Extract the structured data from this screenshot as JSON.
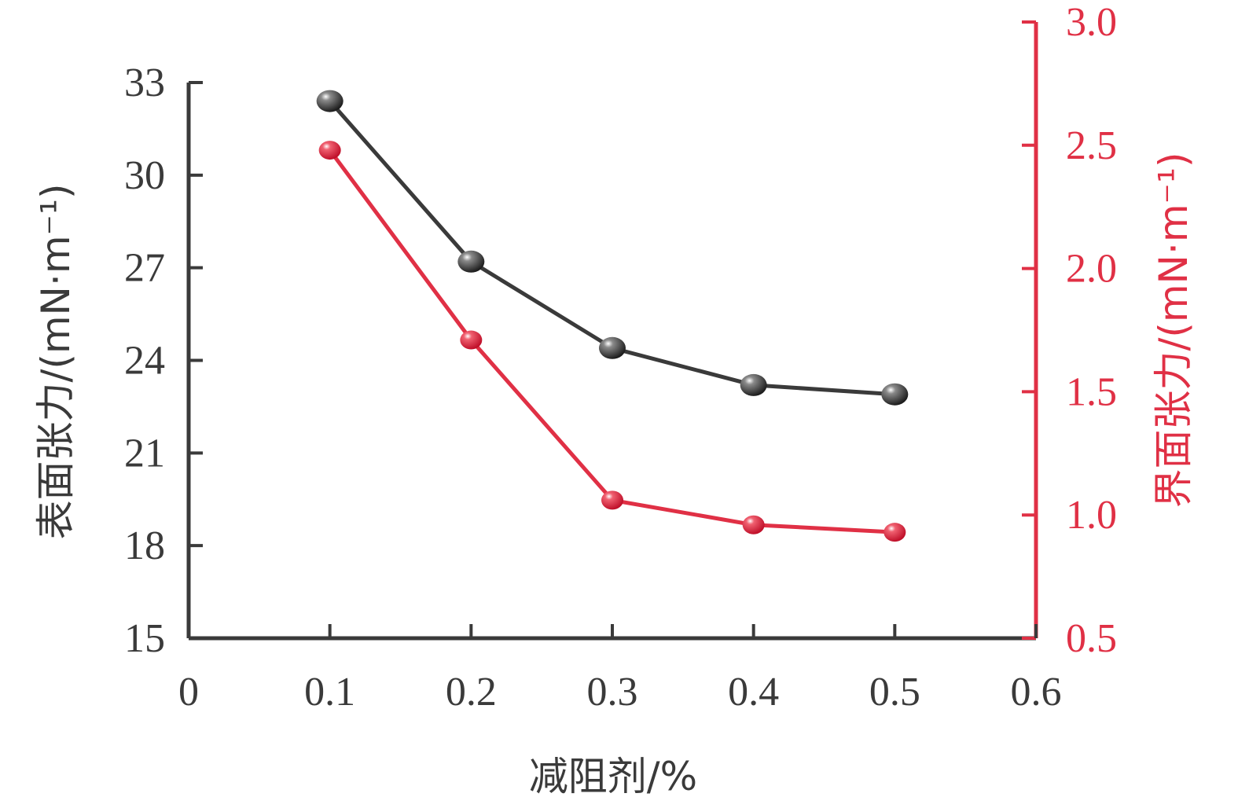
{
  "chart_data": {
    "type": "line",
    "xlabel": "减阻剂/%",
    "ylabel_left": "表面张力/(mN·m⁻¹)",
    "ylabel_right": "界面张力/(mN·m⁻¹)",
    "xlim": [
      0,
      0.6
    ],
    "ylim_left": [
      15,
      33
    ],
    "ylim_right": [
      0.5,
      3.0
    ],
    "x_ticks": [
      "0",
      "0.1",
      "0.2",
      "0.3",
      "0.4",
      "0.5",
      "0.6"
    ],
    "y_left_ticks": [
      "15",
      "18",
      "21",
      "24",
      "27",
      "30",
      "33"
    ],
    "y_right_ticks": [
      "0.5",
      "1.0",
      "1.5",
      "2.0",
      "2.5",
      "3.0"
    ],
    "x": [
      0.1,
      0.2,
      0.3,
      0.4,
      0.5
    ],
    "series": [
      {
        "axis": "left",
        "color": "#3a3a3a",
        "values": [
          32.4,
          27.2,
          24.4,
          23.2,
          22.9
        ]
      },
      {
        "axis": "right",
        "color": "#e03045",
        "values": [
          2.48,
          1.71,
          1.06,
          0.96,
          0.93
        ]
      }
    ],
    "grid": false,
    "legend": "none"
  }
}
